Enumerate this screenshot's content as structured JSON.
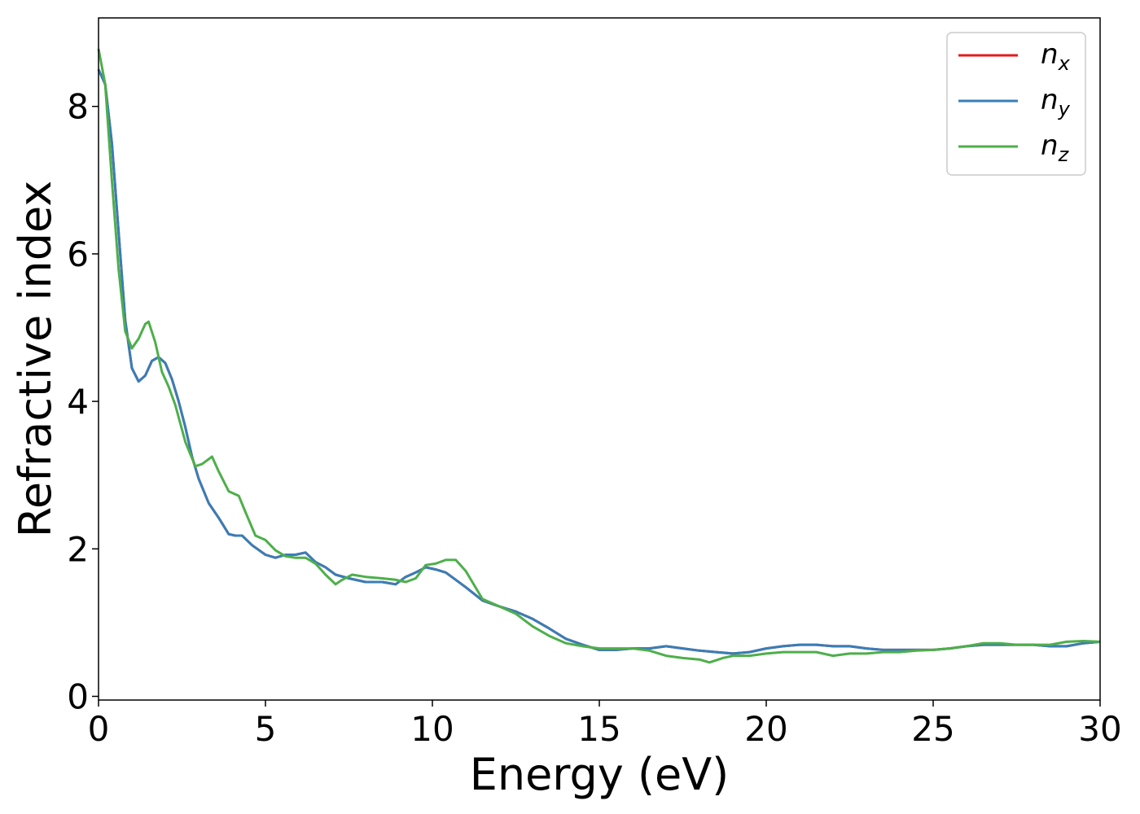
{
  "chart_data": {
    "type": "line",
    "xlabel": "Energy (eV)",
    "ylabel": "Refractive index",
    "xlim": [
      0,
      30
    ],
    "ylim": [
      -0.05,
      9.2
    ],
    "xticks": [
      0,
      5,
      10,
      15,
      20,
      25,
      30
    ],
    "yticks": [
      0,
      2,
      4,
      6,
      8
    ],
    "grid": false,
    "legend_position": "top-right",
    "series": [
      {
        "name": "n",
        "subscript": "x",
        "color": "#e41a1c",
        "x": [
          0,
          0.2,
          0.4,
          0.6,
          0.8,
          1.0,
          1.2,
          1.4,
          1.6,
          1.8,
          2.0,
          2.2,
          2.4,
          2.6,
          2.8,
          3.0,
          3.3,
          3.6,
          3.9,
          4.1,
          4.3,
          4.6,
          5.0,
          5.3,
          5.6,
          5.9,
          6.2,
          6.5,
          6.8,
          7.1,
          7.5,
          8.0,
          8.5,
          8.9,
          9.2,
          9.5,
          9.8,
          10.1,
          10.4,
          10.7,
          11.0,
          11.5,
          12.0,
          12.5,
          13.0,
          13.5,
          14.0,
          14.5,
          15.0,
          15.5,
          16.0,
          16.5,
          17.0,
          17.5,
          18.0,
          18.5,
          19.0,
          19.5,
          20.0,
          20.5,
          21.0,
          21.5,
          22.0,
          22.5,
          23.0,
          23.5,
          24.0,
          24.5,
          25.0,
          25.5,
          26.0,
          26.5,
          27.0,
          27.5,
          28.0,
          28.5,
          29.0,
          29.5,
          30.0
        ],
        "y": [
          8.5,
          8.3,
          7.5,
          6.3,
          5.1,
          4.45,
          4.27,
          4.35,
          4.55,
          4.6,
          4.52,
          4.3,
          4.0,
          3.65,
          3.25,
          2.95,
          2.62,
          2.42,
          2.2,
          2.18,
          2.18,
          2.05,
          1.92,
          1.88,
          1.92,
          1.92,
          1.95,
          1.82,
          1.75,
          1.65,
          1.6,
          1.55,
          1.55,
          1.52,
          1.62,
          1.68,
          1.75,
          1.72,
          1.68,
          1.58,
          1.48,
          1.3,
          1.22,
          1.15,
          1.05,
          0.92,
          0.78,
          0.7,
          0.63,
          0.63,
          0.65,
          0.65,
          0.68,
          0.65,
          0.62,
          0.6,
          0.58,
          0.6,
          0.65,
          0.68,
          0.7,
          0.7,
          0.68,
          0.68,
          0.65,
          0.63,
          0.63,
          0.63,
          0.63,
          0.65,
          0.68,
          0.7,
          0.7,
          0.7,
          0.7,
          0.68,
          0.68,
          0.72,
          0.74
        ]
      },
      {
        "name": "n",
        "subscript": "y",
        "color": "#377eb8",
        "x": [
          0,
          0.2,
          0.4,
          0.6,
          0.8,
          1.0,
          1.2,
          1.4,
          1.6,
          1.8,
          2.0,
          2.2,
          2.4,
          2.6,
          2.8,
          3.0,
          3.3,
          3.6,
          3.9,
          4.1,
          4.3,
          4.6,
          5.0,
          5.3,
          5.6,
          5.9,
          6.2,
          6.5,
          6.8,
          7.1,
          7.5,
          8.0,
          8.5,
          8.9,
          9.2,
          9.5,
          9.8,
          10.1,
          10.4,
          10.7,
          11.0,
          11.5,
          12.0,
          12.5,
          13.0,
          13.5,
          14.0,
          14.5,
          15.0,
          15.5,
          16.0,
          16.5,
          17.0,
          17.5,
          18.0,
          18.5,
          19.0,
          19.5,
          20.0,
          20.5,
          21.0,
          21.5,
          22.0,
          22.5,
          23.0,
          23.5,
          24.0,
          24.5,
          25.0,
          25.5,
          26.0,
          26.5,
          27.0,
          27.5,
          28.0,
          28.5,
          29.0,
          29.5,
          30.0
        ],
        "y": [
          8.5,
          8.3,
          7.5,
          6.3,
          5.1,
          4.45,
          4.27,
          4.35,
          4.55,
          4.6,
          4.52,
          4.3,
          4.0,
          3.65,
          3.25,
          2.95,
          2.62,
          2.42,
          2.2,
          2.18,
          2.18,
          2.05,
          1.92,
          1.88,
          1.92,
          1.92,
          1.95,
          1.82,
          1.75,
          1.65,
          1.6,
          1.55,
          1.55,
          1.52,
          1.62,
          1.68,
          1.75,
          1.72,
          1.68,
          1.58,
          1.48,
          1.3,
          1.22,
          1.15,
          1.05,
          0.92,
          0.78,
          0.7,
          0.63,
          0.63,
          0.65,
          0.65,
          0.68,
          0.65,
          0.62,
          0.6,
          0.58,
          0.6,
          0.65,
          0.68,
          0.7,
          0.7,
          0.68,
          0.68,
          0.65,
          0.63,
          0.63,
          0.63,
          0.63,
          0.65,
          0.68,
          0.7,
          0.7,
          0.7,
          0.7,
          0.68,
          0.68,
          0.72,
          0.74
        ]
      },
      {
        "name": "n",
        "subscript": "z",
        "color": "#4daf4a",
        "x": [
          0,
          0.2,
          0.4,
          0.6,
          0.8,
          1.0,
          1.2,
          1.4,
          1.5,
          1.7,
          1.9,
          2.1,
          2.3,
          2.6,
          2.9,
          3.1,
          3.4,
          3.6,
          3.9,
          4.2,
          4.4,
          4.7,
          5.0,
          5.3,
          5.6,
          5.9,
          6.2,
          6.5,
          6.8,
          7.1,
          7.3,
          7.6,
          8.0,
          8.5,
          8.9,
          9.2,
          9.5,
          9.8,
          10.1,
          10.4,
          10.7,
          11.0,
          11.5,
          12.0,
          12.5,
          13.0,
          13.5,
          14.0,
          14.5,
          15.0,
          15.5,
          16.0,
          16.5,
          17.0,
          17.5,
          18.0,
          18.3,
          18.7,
          19.0,
          19.5,
          20.0,
          20.5,
          21.0,
          21.5,
          22.0,
          22.5,
          23.0,
          23.5,
          24.0,
          24.5,
          25.0,
          25.5,
          26.0,
          26.5,
          27.0,
          27.5,
          28.0,
          28.5,
          29.0,
          29.5,
          30.0
        ],
        "y": [
          8.78,
          8.3,
          7.0,
          5.8,
          4.95,
          4.72,
          4.85,
          5.05,
          5.08,
          4.8,
          4.4,
          4.2,
          3.95,
          3.45,
          3.12,
          3.15,
          3.25,
          3.05,
          2.78,
          2.72,
          2.5,
          2.18,
          2.12,
          1.98,
          1.9,
          1.88,
          1.88,
          1.8,
          1.65,
          1.52,
          1.58,
          1.65,
          1.62,
          1.6,
          1.58,
          1.55,
          1.6,
          1.78,
          1.8,
          1.85,
          1.85,
          1.7,
          1.32,
          1.22,
          1.12,
          0.95,
          0.82,
          0.72,
          0.68,
          0.65,
          0.65,
          0.65,
          0.62,
          0.55,
          0.52,
          0.5,
          0.46,
          0.52,
          0.55,
          0.55,
          0.58,
          0.6,
          0.6,
          0.6,
          0.55,
          0.58,
          0.58,
          0.6,
          0.6,
          0.62,
          0.63,
          0.65,
          0.68,
          0.72,
          0.72,
          0.7,
          0.7,
          0.7,
          0.74,
          0.75,
          0.74
        ]
      }
    ]
  }
}
